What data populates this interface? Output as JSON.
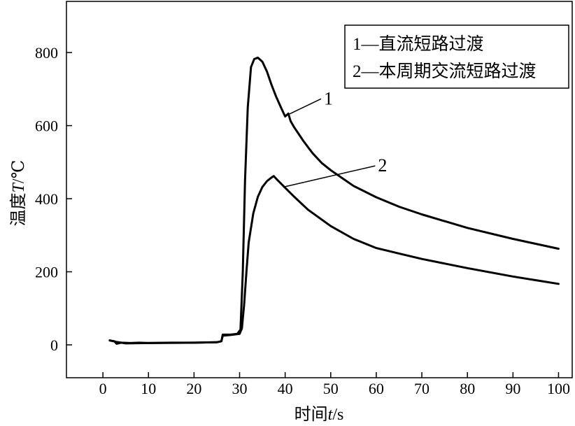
{
  "chart_data": {
    "type": "line",
    "xlabel_prefix": "时间",
    "xlabel_var": "t",
    "xlabel_unit": "/s",
    "ylabel_prefix": "温度",
    "ylabel_var": "T",
    "ylabel_unit": "/℃",
    "xlim": [
      -8,
      103
    ],
    "ylim": [
      -90,
      940
    ],
    "xticks": [
      0,
      10,
      20,
      30,
      40,
      50,
      60,
      70,
      80,
      90,
      100
    ],
    "yticks": [
      0,
      200,
      400,
      600,
      800
    ],
    "legend": {
      "position": "top-right",
      "entries": [
        "1—直流短路过渡",
        "2—本周期交流短路过渡"
      ]
    },
    "series": [
      {
        "label": "1",
        "x": [
          1.5,
          2.5,
          3,
          4,
          6,
          8,
          10,
          15,
          20,
          25,
          26,
          26.3,
          28,
          29.5,
          30.2,
          30.7,
          31.2,
          31.8,
          32.5,
          33.2,
          34,
          35,
          36,
          37,
          38,
          39,
          40,
          40.7,
          41.2,
          42,
          44,
          46,
          48,
          50,
          55,
          60,
          65,
          70,
          80,
          90,
          100
        ],
        "y": [
          12,
          10,
          3,
          6,
          5,
          6,
          5,
          6,
          6,
          7,
          10,
          28,
          28,
          30,
          42,
          200,
          450,
          650,
          760,
          782,
          786,
          775,
          748,
          712,
          680,
          652,
          625,
          633,
          612,
          595,
          558,
          525,
          498,
          478,
          435,
          404,
          378,
          357,
          320,
          290,
          263
        ]
      },
      {
        "label": "2",
        "x": [
          1.5,
          3,
          5,
          10,
          20,
          25,
          26,
          26.3,
          28,
          30,
          30.5,
          31,
          31.5,
          32,
          33,
          34,
          35,
          36,
          37,
          37.5,
          38,
          40,
          42,
          45,
          50,
          55,
          60,
          65,
          70,
          80,
          90,
          100
        ],
        "y": [
          12,
          8,
          4,
          5,
          6,
          7,
          10,
          25,
          27,
          30,
          45,
          110,
          200,
          280,
          360,
          405,
          432,
          448,
          458,
          462,
          455,
          430,
          405,
          370,
          325,
          290,
          265,
          250,
          235,
          210,
          187,
          167
        ]
      }
    ],
    "annotations": [
      {
        "text": "1",
        "series": 0,
        "at_x": 40.2
      },
      {
        "text": "2",
        "series": 1,
        "at_x": 39.8
      }
    ]
  }
}
